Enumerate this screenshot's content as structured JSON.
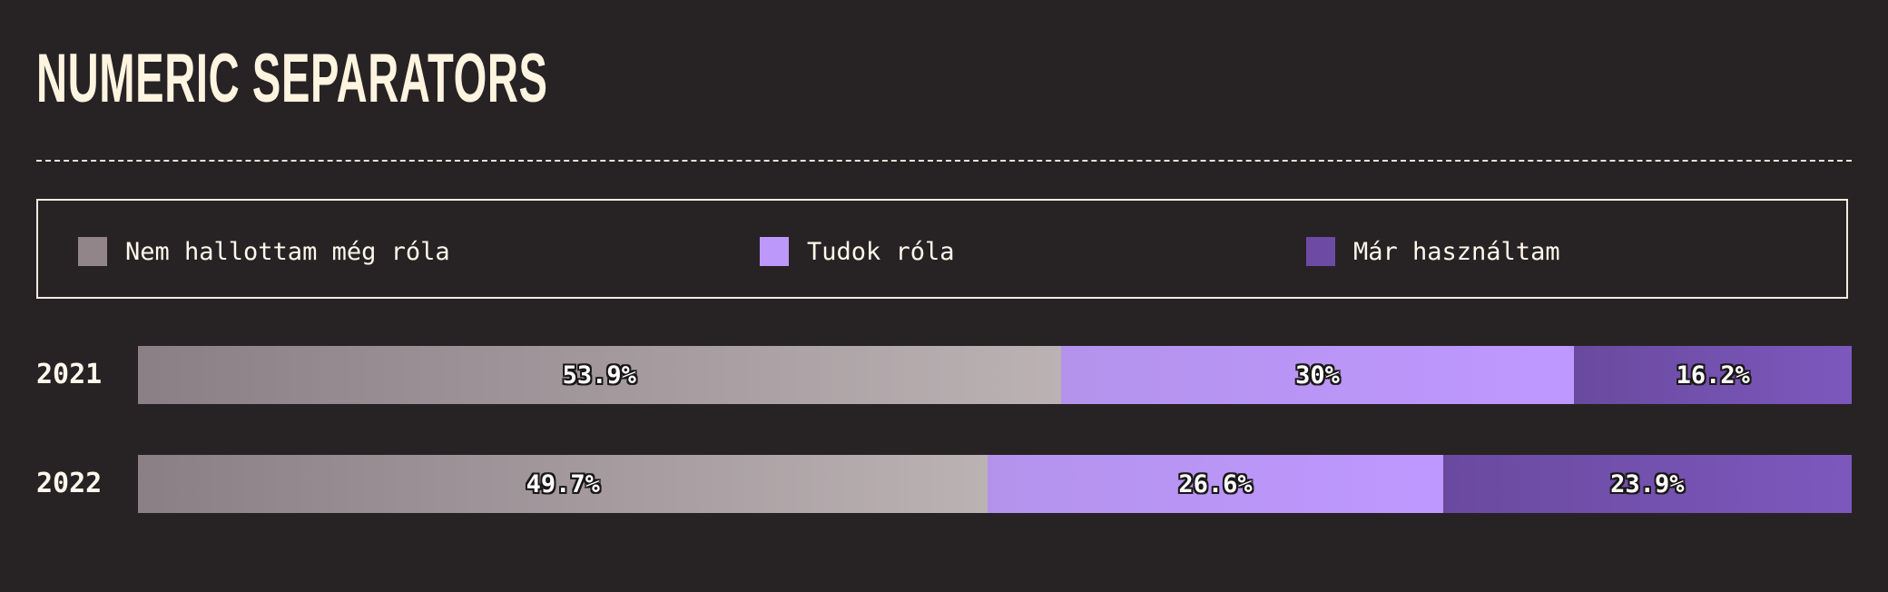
{
  "title": "NUMERIC SEPARATORS",
  "legend": [
    {
      "label": "Nem hallottam még róla",
      "color": "#918589"
    },
    {
      "label": "Tudok róla",
      "color": "#bd98fb"
    },
    {
      "label": "Már használtam",
      "color": "#6d4ba5"
    }
  ],
  "chart_data": {
    "type": "bar",
    "orientation": "horizontal",
    "stacked": true,
    "normalized_percent": true,
    "title": "NUMERIC SEPARATORS",
    "categories": [
      "2021",
      "2022"
    ],
    "series": [
      {
        "name": "Nem hallottam még róla",
        "values": [
          53.9,
          49.7
        ],
        "labels": [
          "53.9%",
          "49.7%"
        ]
      },
      {
        "name": "Tudok róla",
        "values": [
          30,
          26.6
        ],
        "labels": [
          "30%",
          "26.6%"
        ]
      },
      {
        "name": "Már használtam",
        "values": [
          16.2,
          23.9
        ],
        "labels": [
          "16.2%",
          "23.9%"
        ]
      }
    ],
    "legend_position": "top",
    "grid": false
  }
}
